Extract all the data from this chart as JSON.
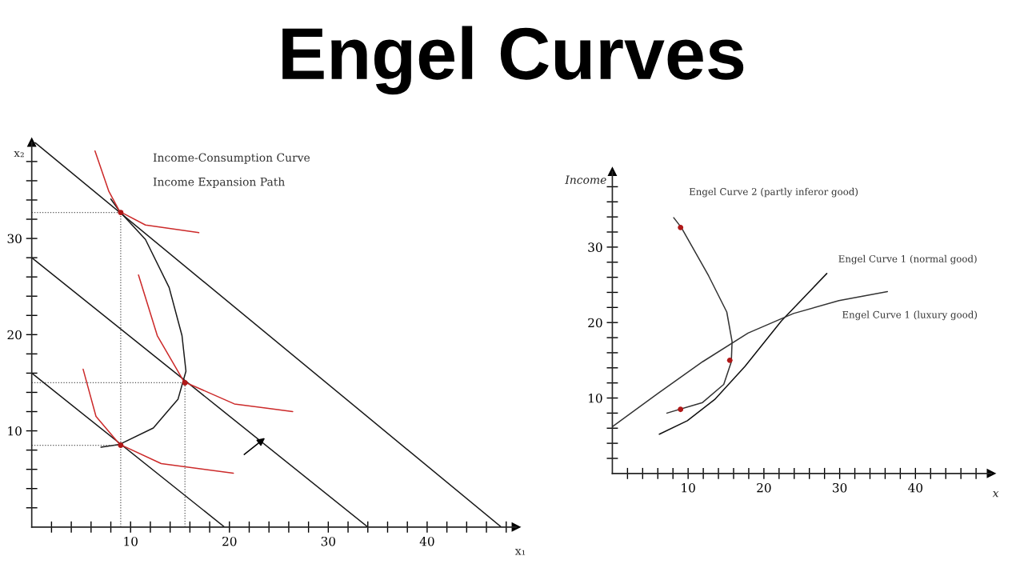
{
  "chart_data": [
    {
      "type": "line",
      "title": "Engel Curves",
      "xlabel": "x₁",
      "ylabel": "x₂",
      "xlim": [
        0,
        49
      ],
      "ylim": [
        0,
        40
      ],
      "xticks": [
        {
          "value": 2,
          "label": null
        },
        {
          "value": 4,
          "label": null
        },
        {
          "value": 6,
          "label": null
        },
        {
          "value": 8,
          "label": null
        },
        10,
        {
          "value": 12,
          "label": null
        },
        {
          "value": 14,
          "label": null
        },
        {
          "value": 16,
          "label": null
        },
        {
          "value": 18,
          "label": null
        },
        20,
        {
          "value": 22,
          "label": null
        },
        {
          "value": 24,
          "label": null
        },
        {
          "value": 26,
          "label": null
        },
        {
          "value": 28,
          "label": null
        },
        30,
        {
          "value": 32,
          "label": null
        },
        {
          "value": 34,
          "label": null
        },
        {
          "value": 36,
          "label": null
        },
        {
          "value": 38,
          "label": null
        },
        40,
        {
          "value": 42,
          "label": null
        },
        {
          "value": 44,
          "label": null
        },
        {
          "value": 46,
          "label": null
        },
        {
          "value": 48,
          "label": null
        }
      ],
      "yticks": [
        {
          "value": 2,
          "label": null
        },
        {
          "value": 4,
          "label": null
        },
        {
          "value": 6,
          "label": null
        },
        {
          "value": 8,
          "label": null
        },
        10,
        {
          "value": 12,
          "label": null
        },
        {
          "value": 14,
          "label": null
        },
        {
          "value": 16,
          "label": null
        },
        {
          "value": 18,
          "label": null
        },
        20,
        {
          "value": 22,
          "label": null
        },
        {
          "value": 24,
          "label": null
        },
        {
          "value": 26,
          "label": null
        },
        {
          "value": 28,
          "label": null
        },
        30,
        {
          "value": 32,
          "label": null
        },
        {
          "value": 34,
          "label": null
        },
        {
          "value": 36,
          "label": null
        },
        {
          "value": 38,
          "label": null
        }
      ],
      "annotations": [
        "Income-Consumption Curve",
        "Income Expansion Path"
      ],
      "series": [
        {
          "color": "#1a1a1a",
          "line_style": "solid",
          "x": [
            0,
            19.5
          ],
          "values": [
            16,
            0
          ]
        },
        {
          "color": "#1a1a1a",
          "line_style": "solid",
          "x": [
            0,
            34
          ],
          "values": [
            28,
            0
          ]
        },
        {
          "color": "#1a1a1a",
          "line_style": "solid",
          "x": [
            0.3,
            47.5
          ],
          "values": [
            40,
            0
          ]
        },
        {
          "color": "#1a1a1a",
          "line_style": "solid",
          "x": [
            7.0,
            8.9,
            12.3,
            14.8,
            15.6,
            15.2,
            13.9,
            11.5,
            8.9,
            8.0
          ],
          "values": [
            8.3,
            8.6,
            10.3,
            13.3,
            16.2,
            19.9,
            24.9,
            29.9,
            32.8,
            34.1
          ]
        },
        {
          "color": "#cc2a2a",
          "line_style": "solid",
          "x": [
            5.2,
            6.5,
            8.9,
            13.1,
            20.4
          ],
          "values": [
            16.4,
            11.5,
            8.6,
            6.6,
            5.6
          ]
        },
        {
          "color": "#cc2a2a",
          "line_style": "solid",
          "x": [
            10.8,
            12.7,
            15.4,
            20.5,
            26.4
          ],
          "values": [
            26.2,
            19.9,
            15.1,
            12.8,
            12.0
          ]
        },
        {
          "color": "#cc2a2a",
          "line_style": "solid",
          "x": [
            6.4,
            7.8,
            8.9,
            11.5,
            16.9
          ],
          "values": [
            39.1,
            34.9,
            32.8,
            31.4,
            30.6
          ]
        },
        {
          "color": "#555555",
          "line_style": "dotted",
          "x": [
            0,
            9
          ],
          "values": [
            32.7,
            32.7
          ]
        },
        {
          "color": "#555555",
          "line_style": "dotted",
          "x": [
            0,
            15.5
          ],
          "values": [
            15,
            15
          ]
        },
        {
          "color": "#555555",
          "line_style": "dotted",
          "x": [
            0,
            9
          ],
          "values": [
            8.5,
            8.5
          ]
        },
        {
          "color": "#555555",
          "line_style": "dotted",
          "x": [
            9,
            9
          ],
          "values": [
            0,
            32.7
          ]
        },
        {
          "color": "#555555",
          "line_style": "dotted",
          "x": [
            15.5,
            15.5
          ],
          "values": [
            0,
            15
          ]
        },
        {
          "type": "scatter",
          "marker": "circle",
          "color": "#b01818",
          "x": [
            9,
            15.5,
            9
          ],
          "values": [
            32.7,
            15,
            8.5
          ]
        }
      ]
    },
    {
      "type": "line",
      "xlabel": "x",
      "ylabel": "Income",
      "xlim": [
        0,
        50
      ],
      "ylim": [
        0,
        40
      ],
      "xticks": [
        {
          "value": 2,
          "label": null
        },
        {
          "value": 4,
          "label": null
        },
        {
          "value": 6,
          "label": null
        },
        {
          "value": 8,
          "label": null
        },
        10,
        {
          "value": 12,
          "label": null
        },
        {
          "value": 14,
          "label": null
        },
        {
          "value": 16,
          "label": null
        },
        {
          "value": 18,
          "label": null
        },
        20,
        {
          "value": 22,
          "label": null
        },
        {
          "value": 24,
          "label": null
        },
        {
          "value": 26,
          "label": null
        },
        {
          "value": 28,
          "label": null
        },
        30,
        {
          "value": 32,
          "label": null
        },
        {
          "value": 34,
          "label": null
        },
        {
          "value": 36,
          "label": null
        },
        {
          "value": 38,
          "label": null
        },
        40,
        {
          "value": 42,
          "label": null
        },
        {
          "value": 44,
          "label": null
        },
        {
          "value": 46,
          "label": null
        },
        {
          "value": 48,
          "label": null
        }
      ],
      "yticks": [
        {
          "value": 2,
          "label": null
        },
        {
          "value": 4,
          "label": null
        },
        {
          "value": 6,
          "label": null
        },
        {
          "value": 8,
          "label": null
        },
        10,
        {
          "value": 12,
          "label": null
        },
        {
          "value": 14,
          "label": null
        },
        {
          "value": 16,
          "label": null
        },
        {
          "value": 18,
          "label": null
        },
        20,
        {
          "value": 22,
          "label": null
        },
        {
          "value": 24,
          "label": null
        },
        {
          "value": 26,
          "label": null
        },
        {
          "value": 28,
          "label": null
        },
        30,
        {
          "value": 32,
          "label": null
        },
        {
          "value": 34,
          "label": null
        },
        {
          "value": 36,
          "label": null
        },
        {
          "value": 38,
          "label": null
        }
      ],
      "series": [
        {
          "name": "Engel Curve 2 (partly inferor good)",
          "color": "#333333",
          "line_style": "solid",
          "x": [
            8.1,
            9.1,
            12.7,
            15.1,
            15.8,
            15.7,
            14.7,
            11.9,
            7.2
          ],
          "values": [
            33.9,
            32.6,
            26.2,
            21.4,
            17.5,
            14.8,
            11.8,
            9.4,
            8.0
          ]
        },
        {
          "name": "Engel Curve 1 (normal good)",
          "color": "#111111",
          "line_style": "solid",
          "x": [
            6.2,
            9.9,
            13.5,
            17.5,
            22.3,
            28.3
          ],
          "values": [
            5.2,
            7.0,
            9.8,
            14.2,
            20.2,
            26.5
          ]
        },
        {
          "name": "Engel Curve 1 (luxury good)",
          "color": "#333333",
          "line_style": "solid",
          "x": [
            0,
            6.0,
            11.9,
            17.9,
            23.9,
            29.9,
            36.3
          ],
          "values": [
            6.2,
            10.6,
            14.8,
            18.6,
            21.2,
            22.9,
            24.1
          ]
        },
        {
          "type": "scatter",
          "marker": "circle",
          "color": "#b01818",
          "x": [
            9,
            15.5,
            9
          ],
          "values": [
            32.6,
            15,
            8.5
          ]
        }
      ]
    }
  ]
}
